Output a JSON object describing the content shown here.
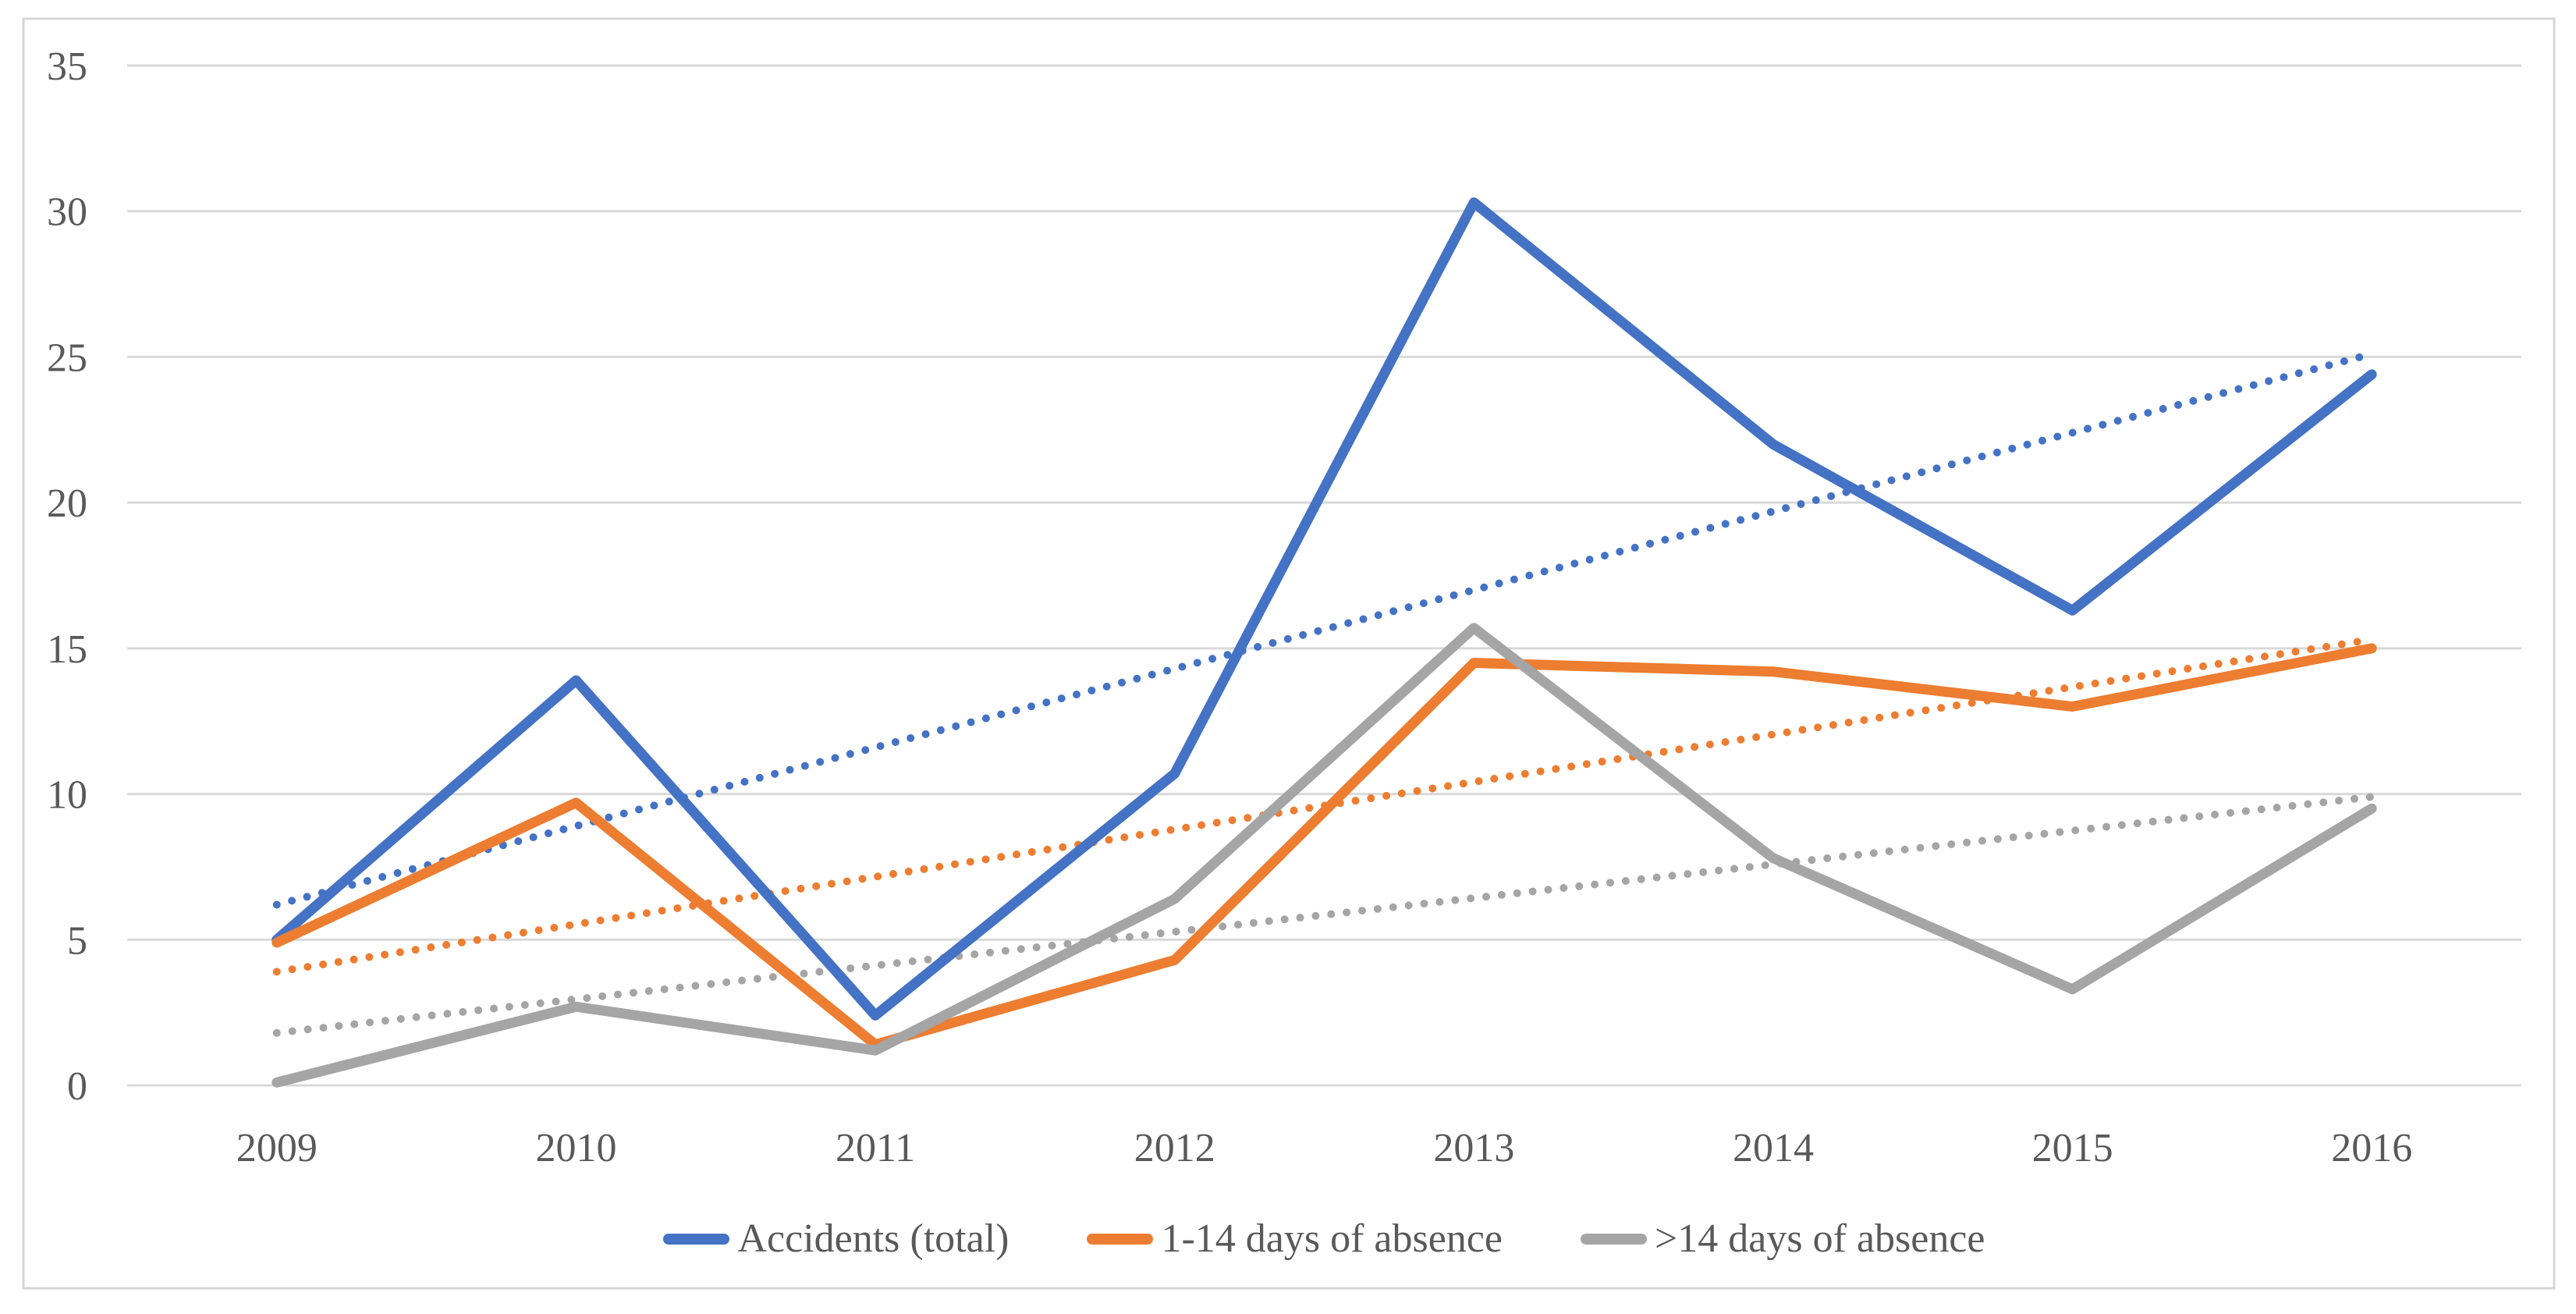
{
  "chart_data": {
    "type": "line",
    "title": "",
    "xlabel": "",
    "ylabel": "",
    "x": [
      "2009",
      "2010",
      "2011",
      "2012",
      "2013",
      "2014",
      "2015",
      "2016"
    ],
    "ylim": [
      0,
      35
    ],
    "yticks": [
      0,
      5,
      10,
      15,
      20,
      25,
      30,
      35
    ],
    "grid": "horizontal-only",
    "legend_position": "bottom-center",
    "series": [
      {
        "name": "Accidents (total)",
        "color": "#4472C4",
        "style": "solid",
        "values": [
          5.0,
          13.9,
          2.4,
          10.7,
          30.3,
          22.0,
          16.3,
          24.4
        ],
        "trendline": {
          "style": "dotted",
          "start": 6.2,
          "end": 25.1
        }
      },
      {
        "name": "1-14 days of absence",
        "color": "#ED7D31",
        "style": "solid",
        "values": [
          4.9,
          9.7,
          1.4,
          4.3,
          14.5,
          14.2,
          13.0,
          15.0
        ],
        "trendline": {
          "style": "dotted",
          "start": 3.9,
          "end": 15.3
        }
      },
      {
        "name": ">14 days of absence",
        "color": "#A5A5A5",
        "style": "solid",
        "values": [
          0.1,
          2.7,
          1.2,
          6.4,
          15.7,
          7.8,
          3.3,
          9.5
        ],
        "trendline": {
          "style": "dotted",
          "start": 1.8,
          "end": 9.9
        }
      }
    ]
  },
  "colors": {
    "background": "#FFFFFF",
    "gridline": "#D9D9D9",
    "figure_border": "#D6D6D6",
    "axis_text": "#595959"
  }
}
